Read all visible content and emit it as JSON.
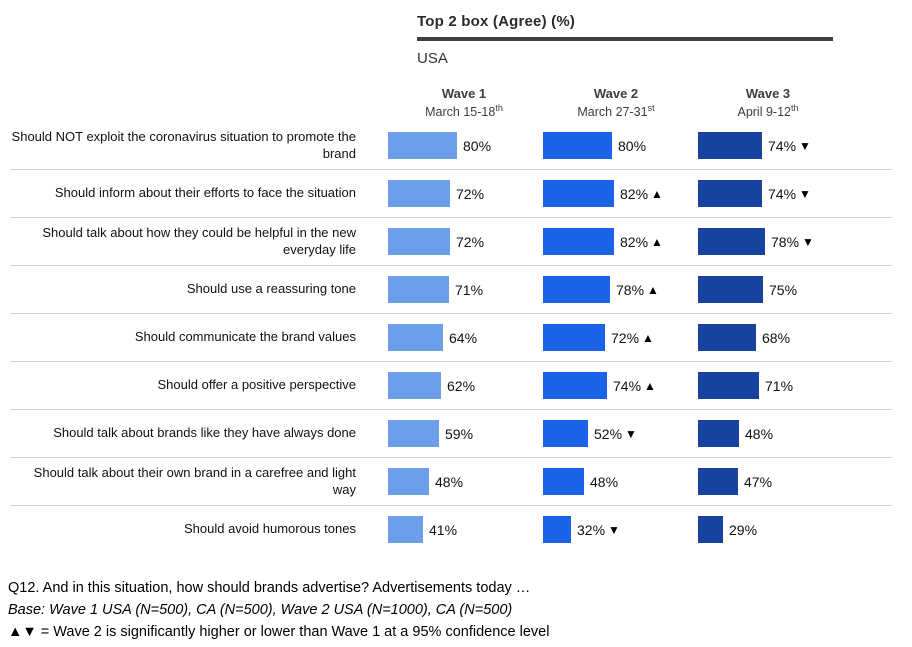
{
  "header": {
    "title": "Top 2 box (Agree) (%)",
    "region": "USA"
  },
  "waves": [
    {
      "label": "Wave 1",
      "date": "March 15-18",
      "date_suffix": "th",
      "color": "#6D9EEB"
    },
    {
      "label": "Wave 2",
      "date": "March 27-31",
      "date_suffix": "st",
      "color": "#1B64E8"
    },
    {
      "label": "Wave 3",
      "date": "April 9-12",
      "date_suffix": "th",
      "color": "#17429F"
    }
  ],
  "chart_data": {
    "type": "bar",
    "title": "Top 2 box (Agree) (%)",
    "region": "USA",
    "unit": "%",
    "xlim": [
      0,
      100
    ],
    "legend_position": "top-column-headers",
    "grid": false,
    "categories": [
      "Should NOT exploit the coronavirus situation to promote the brand",
      "Should inform about their efforts to face the situation",
      "Should talk about how they could be helpful in the new everyday life",
      "Should use a reassuring tone",
      "Should communicate the brand values",
      "Should offer a positive perspective",
      "Should talk about brands like they have always done",
      "Should talk about their own brand in a carefree and light way",
      "Should avoid humorous tones"
    ],
    "series": [
      {
        "name": "Wave 1 (March 15-18th)",
        "values": [
          80,
          72,
          72,
          71,
          64,
          62,
          59,
          48,
          41
        ],
        "markers": [
          "",
          "",
          "",
          "",
          "",
          "",
          "",
          "",
          ""
        ]
      },
      {
        "name": "Wave 2 (March 27-31st)",
        "values": [
          80,
          82,
          82,
          78,
          72,
          74,
          52,
          48,
          32
        ],
        "markers": [
          "",
          "▲",
          "▲",
          "▲",
          "▲",
          "▲",
          "▼",
          "",
          "▼"
        ]
      },
      {
        "name": "Wave 3 (April 9-12th)",
        "values": [
          74,
          74,
          78,
          75,
          68,
          71,
          48,
          47,
          29
        ],
        "markers": [
          "▼",
          "▼",
          "▼",
          "",
          "",
          "",
          "",
          "",
          ""
        ]
      }
    ]
  },
  "footer": {
    "line1": "Q12. And in this situation, how should brands advertise? Advertisements today …",
    "line2": "Base: Wave 1 USA (N=500), CA (N=500), Wave 2 USA (N=1000), CA (N=500)",
    "line3": "▲▼ = Wave 2 is significantly higher or lower than Wave 1 at a 95% confidence level"
  }
}
